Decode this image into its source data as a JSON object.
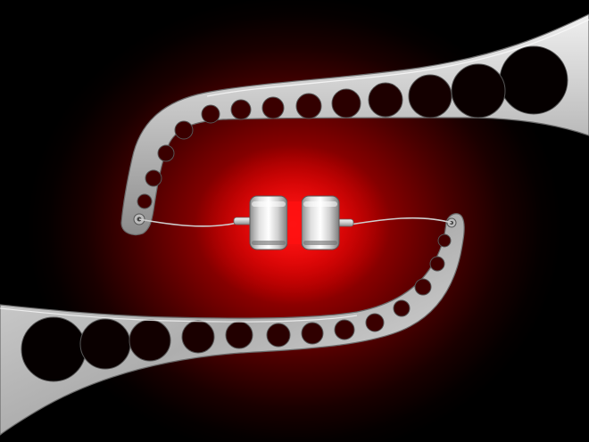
{
  "scene": {
    "description_label": "",
    "colors": {
      "background": "#000000",
      "glow_center": "#f40000",
      "glow_mid": "#8a0000",
      "metal_light": "#e8e8e8",
      "metal_mid": "#b8b8b8",
      "metal_dark": "#7a7a7a",
      "cylinder_shine": "#ffffff"
    },
    "objects": [
      "upper-perforated-arm",
      "lower-perforated-arm",
      "left-magnet-cylinder",
      "right-magnet-cylinder",
      "left-wire",
      "right-wire"
    ]
  }
}
